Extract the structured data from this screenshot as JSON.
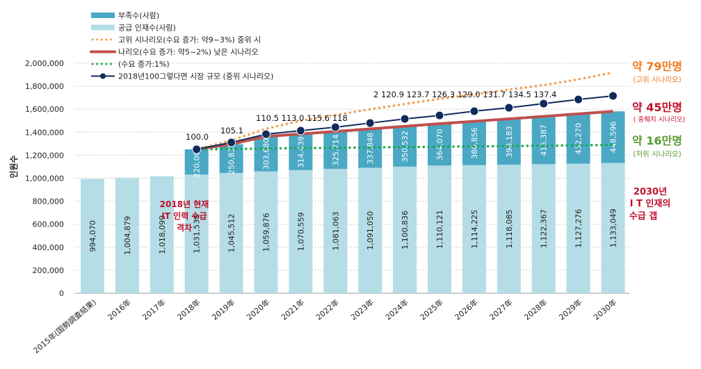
{
  "chart_data": {
    "type": "bar",
    "stacked": true,
    "ylabel": "인원수",
    "ylim": [
      0,
      2000000
    ],
    "yticks": [
      "0",
      "200,000",
      "400,000",
      "600,000",
      "800,000",
      "1,000,000",
      "1,200,000",
      "1,400,000",
      "1,600,000",
      "1,800,000",
      "2,000,000"
    ],
    "grid": true,
    "legend_position": "top-left",
    "categories": [
      "2015年(国勢調査結果)",
      "2016年",
      "2017年",
      "2018年",
      "2019年",
      "2020年",
      "2021年",
      "2022年",
      "2023年",
      "2024年",
      "2025年",
      "2026年",
      "2027年",
      "2028年",
      "2029年",
      "2030年"
    ],
    "series": [
      {
        "name": "공급 인재수(사람)",
        "color": "#b5dde6",
        "values": [
          994070,
          1004879,
          1018099,
          1031538,
          1045512,
          1059876,
          1070559,
          1081063,
          1091050,
          1100836,
          1110121,
          1114225,
          1118085,
          1122367,
          1127276,
          1133049
        ],
        "labels": [
          "994,070",
          "1,004,879",
          "1,018,099",
          "1,031,538",
          "1,045,512",
          "1,059,876",
          "1,070,559",
          "1,081,063",
          "1,091,050",
          "1,100,836",
          "1,110,121",
          "1,114,225",
          "1,118,085",
          "1,122,367",
          "1,127,276",
          "1,133,049"
        ]
      },
      {
        "name": "부족수(사람)",
        "color": "#4aa8c4",
        "values": [
          null,
          null,
          null,
          220000,
          250835,
          303680,
          314439,
          325714,
          337848,
          350532,
          364070,
          380856,
          398183,
          415387,
          432270,
          448596
        ],
        "labels": [
          "",
          "",
          "",
          "220,000",
          "250,835",
          "303,680",
          "314,439",
          "325,714",
          "337,848",
          "350,532",
          "364,070",
          "380,856",
          "398,183",
          "415,387",
          "432,270",
          "448,596"
        ]
      }
    ],
    "lines": [
      {
        "name": "고위 시나리오(수요 증가: 약9~3%) 중위 시",
        "color": "#f0a050",
        "style": "dotted",
        "values": [
          null,
          null,
          null,
          1251538,
          1330000,
          1430000,
          1500000,
          1550000,
          1600000,
          1645000,
          1690000,
          1730000,
          1770000,
          1810000,
          1860000,
          1920000
        ]
      },
      {
        "name": "나리오(수요 증가: 약5~2%) 낮은 시나리오",
        "color": "#c0504d",
        "style": "solid",
        "values": [
          null,
          null,
          null,
          1251538,
          1296347,
          1363556,
          1384998,
          1406777,
          1428898,
          1451368,
          1474191,
          1495081,
          1516268,
          1537754,
          1559546,
          1581645
        ]
      },
      {
        "name": "(수요 증가:1%)",
        "color": "#1aa84a",
        "style": "dotted",
        "values": [
          null,
          null,
          null,
          1251538,
          1255000,
          1258000,
          1262000,
          1265000,
          1268000,
          1271000,
          1274000,
          1277000,
          1280000,
          1283000,
          1286000,
          1290000
        ]
      },
      {
        "name": "2018년100그렇다면 시장 규모 (중위 시나리오)",
        "color": "#0f2a5c",
        "style": "solid-marker",
        "values": [
          null,
          null,
          null,
          1251538,
          1311000,
          1383000,
          1414000,
          1444000,
          1480000,
          1516000,
          1546000,
          1583000,
          1613000,
          1649000,
          1685000,
          1716000
        ]
      }
    ],
    "index_labels": [
      "100.0",
      "105.1",
      "110.5 113.0 115.6 118",
      "2 120.9 123.7 126.3 129.0 131.7 134.5 137.4"
    ],
    "annotations": {
      "center": [
        "2018년 현재",
        "IT 인력 수급",
        "격차"
      ],
      "high_value": "약 79만명",
      "high_sub": "(고위 시나리오)",
      "mid_value": "약 45만명",
      "mid_sub": "( 중췌치 시나리오)",
      "low_value": "약 16만명",
      "low_sub": "(저위 시나리오)",
      "gap": [
        "2030년",
        "I T 인재의",
        "수급 갭"
      ]
    },
    "annotation_colors": {
      "high": "#f07a20",
      "mid": "#c0102a",
      "low": "#5a9a30"
    }
  }
}
